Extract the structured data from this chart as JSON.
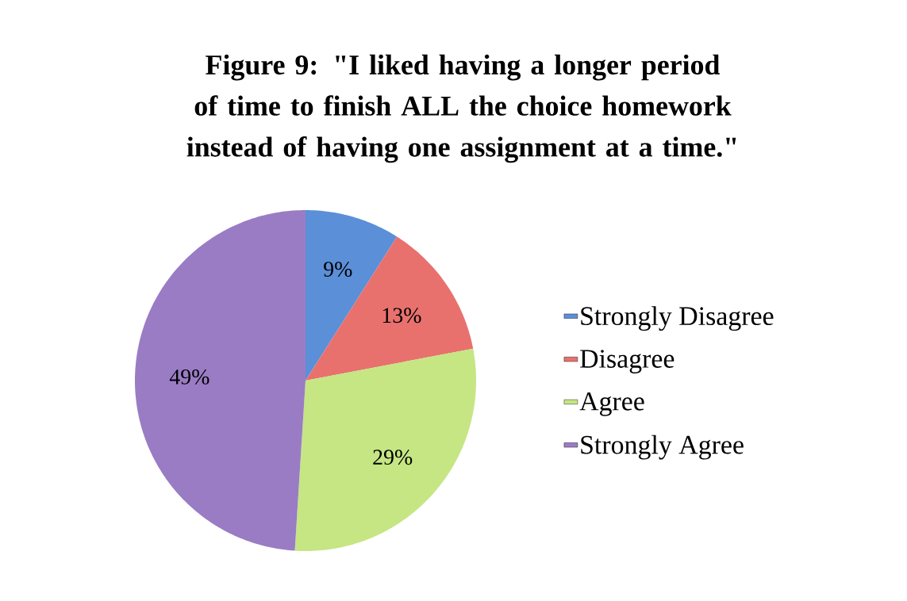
{
  "chart_data": {
    "type": "pie",
    "title": "Figure 9: \"I liked having a longer period of time to finish ALL the choice homework instead of having one assignment at a time.\"",
    "categories": [
      "Strongly Disagree",
      "Disagree",
      "Agree",
      "Strongly Agree"
    ],
    "values": [
      9,
      13,
      29,
      49
    ],
    "colors": [
      "#5b8fd8",
      "#e8716e",
      "#c5e683",
      "#9a7cc4"
    ],
    "value_labels": [
      "9%",
      "13%",
      "29%",
      "49%"
    ],
    "legend": "right"
  }
}
